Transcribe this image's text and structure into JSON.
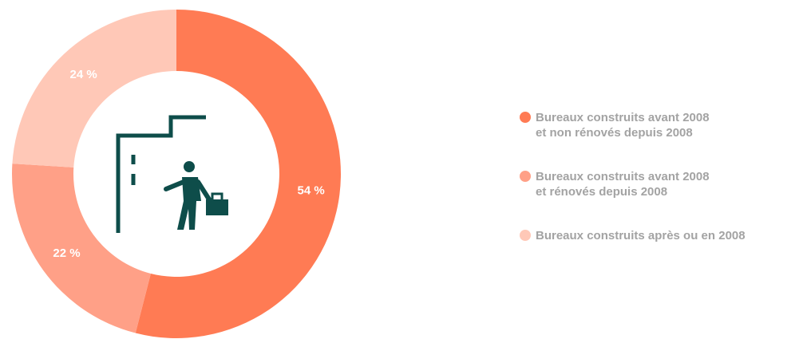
{
  "chart_data": {
    "type": "pie",
    "categories": [
      "Bureaux construits avant 2008\net non rénovés depuis 2008",
      "Bureaux construits avant 2008\net rénovés depuis 2008",
      "Bureaux construits après ou en 2008"
    ],
    "values": [
      54,
      22,
      24
    ],
    "value_labels": [
      "54 %",
      "22 %",
      "24 %"
    ],
    "colors": [
      "#ff7b54",
      "#ffa087",
      "#ffc8b7"
    ],
    "legend": "right"
  }
}
